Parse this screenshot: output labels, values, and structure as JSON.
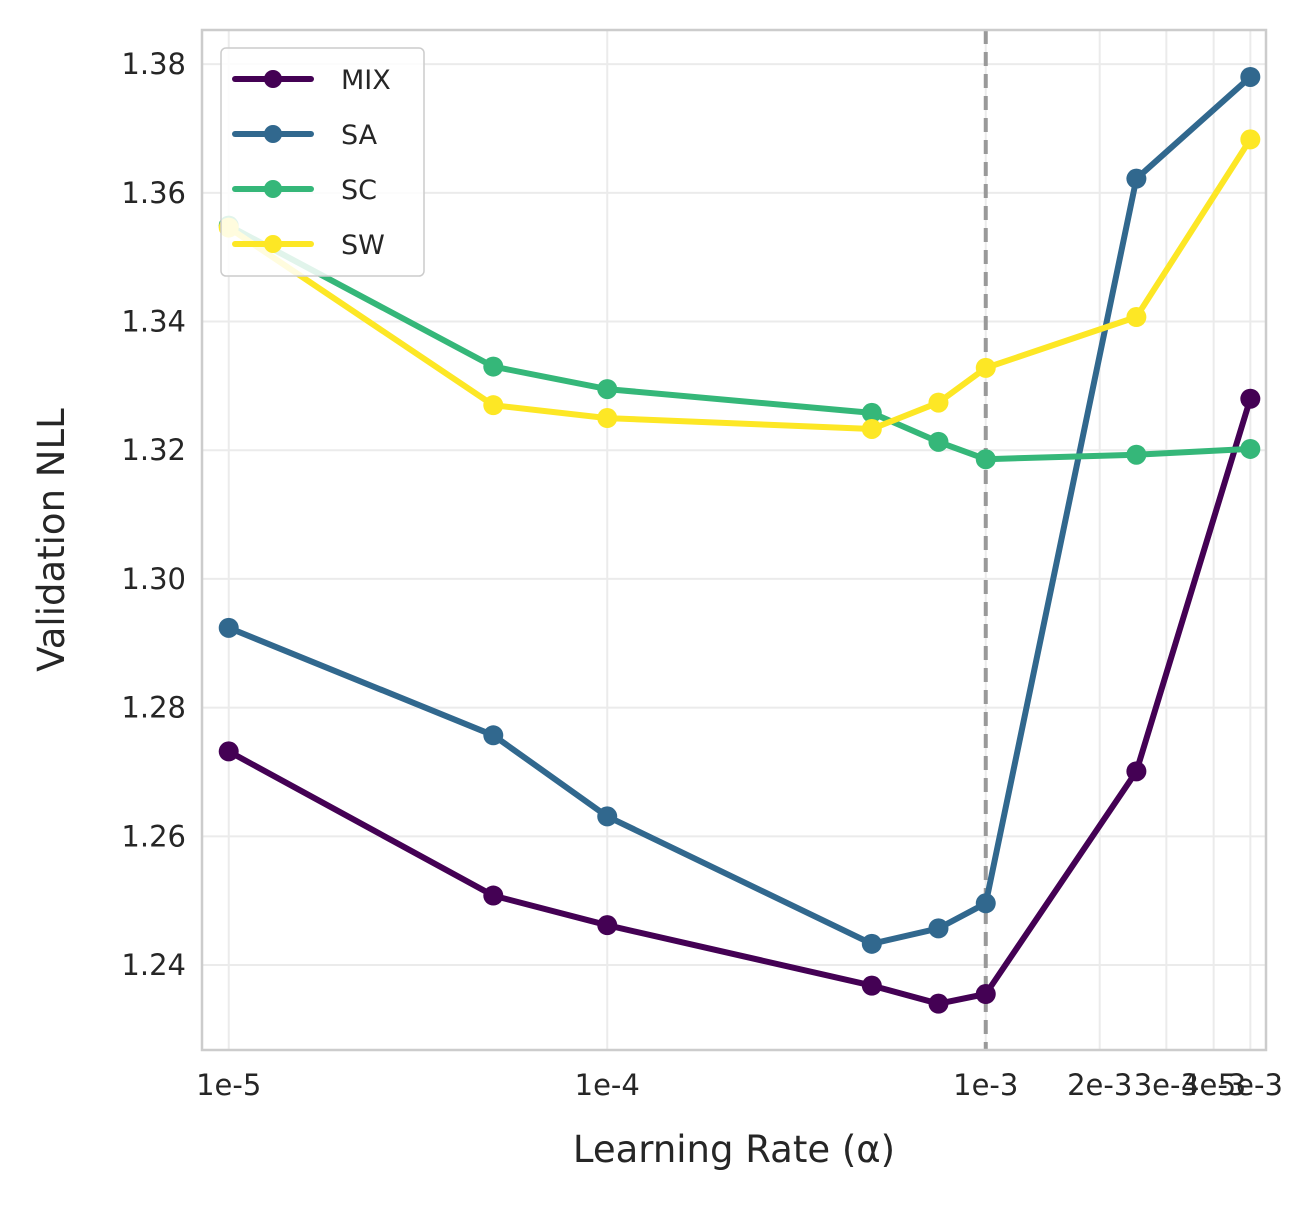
{
  "chart_data": {
    "type": "line",
    "title": "",
    "xlabel": "Learning Rate (α)",
    "ylabel": "Validation NLL",
    "x_scale": "log",
    "xlim": [
      8.5e-06,
      0.0055
    ],
    "ylim": [
      1.2268,
      1.3853
    ],
    "x_ticks": [
      1e-05,
      0.0001,
      0.001,
      0.002,
      0.003,
      0.004,
      0.005
    ],
    "x_tick_labels": [
      "1e-5",
      "1e-4",
      "1e-3",
      "2e-3",
      "3e-3",
      "4e-3",
      "5e-3"
    ],
    "y_ticks": [
      1.24,
      1.26,
      1.28,
      1.3,
      1.32,
      1.34,
      1.36,
      1.38
    ],
    "y_tick_labels": [
      "1.24",
      "1.26",
      "1.28",
      "1.30",
      "1.32",
      "1.34",
      "1.36",
      "1.38"
    ],
    "grid": true,
    "legend_position": "top-left",
    "reference_line": {
      "x": 0.001,
      "style": "dashed",
      "color": "#999999"
    },
    "x": [
      1e-05,
      5e-05,
      0.0001,
      0.0005,
      0.00075,
      0.001,
      0.0025,
      0.005
    ],
    "series": [
      {
        "name": "MIX",
        "color": "#440154",
        "values": [
          1.2732,
          1.2508,
          1.2462,
          1.2368,
          1.234,
          1.2355,
          1.2701,
          1.328
        ]
      },
      {
        "name": "SA",
        "color": "#31688e",
        "values": [
          1.2924,
          1.2757,
          1.2631,
          1.2433,
          1.2457,
          1.2496,
          1.3622,
          1.378
        ]
      },
      {
        "name": "SC",
        "color": "#35b779",
        "values": [
          1.3549,
          1.333,
          1.3295,
          1.3258,
          1.3213,
          1.3186,
          1.3193,
          1.3202
        ]
      },
      {
        "name": "SW",
        "color": "#fde725",
        "values": [
          1.3546,
          1.327,
          1.325,
          1.3233,
          1.3274,
          1.3328,
          1.3407,
          1.3683
        ]
      }
    ]
  }
}
